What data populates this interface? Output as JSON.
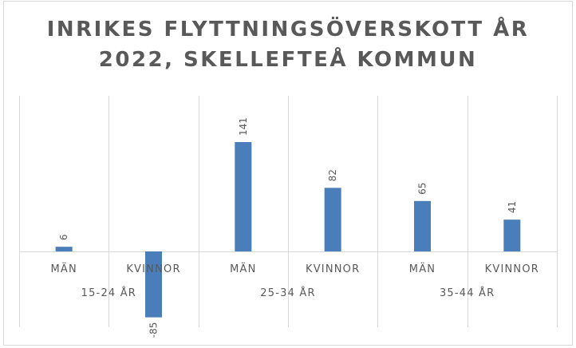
{
  "chart_data": {
    "type": "bar",
    "title_line1": "INRIKES FLYTTNINGSÖVERSKOTT ÅR",
    "title_line2": "2022, SKELLEFTEÅ KOMMUN",
    "groups": [
      "15-24 ÅR",
      "25-34 ÅR",
      "35-44 ÅR"
    ],
    "categories": [
      "MÄN",
      "KVINNOR",
      "MÄN",
      "KVINNOR",
      "MÄN",
      "KVINNOR"
    ],
    "category_groups": [
      0,
      0,
      1,
      1,
      2,
      2
    ],
    "values": [
      6,
      -85,
      141,
      82,
      65,
      41
    ],
    "value_labels": [
      "6",
      "-85",
      "141",
      "82",
      "65",
      "41"
    ],
    "bar_color": "#4a7ebb",
    "grid_color": "#d9d9d9",
    "ylim": [
      -97,
      204
    ],
    "legend": "none"
  }
}
